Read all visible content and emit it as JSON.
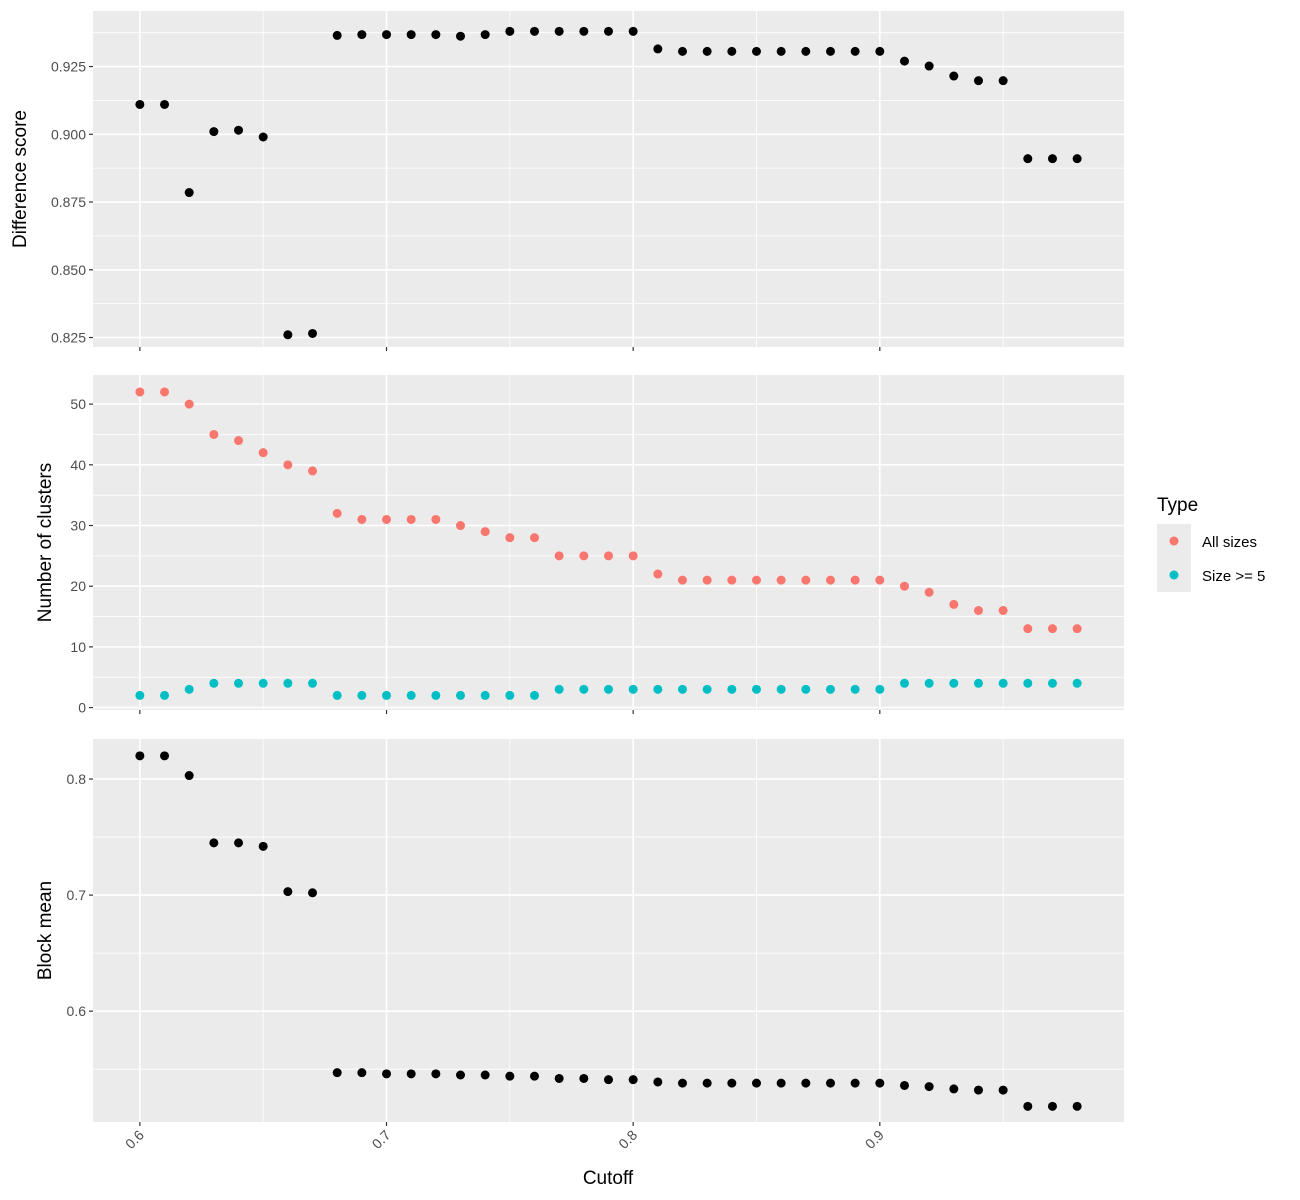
{
  "chart_data": {
    "type": "scatter",
    "xlabel": "Cutoff",
    "x": [
      0.6,
      0.61,
      0.62,
      0.63,
      0.64,
      0.65,
      0.66,
      0.67,
      0.68,
      0.69,
      0.7,
      0.71,
      0.72,
      0.73,
      0.74,
      0.75,
      0.76,
      0.77,
      0.78,
      0.79,
      0.8,
      0.81,
      0.82,
      0.83,
      0.84,
      0.85,
      0.86,
      0.87,
      0.88,
      0.89,
      0.9,
      0.91,
      0.92,
      0.93,
      0.94,
      0.95,
      0.96,
      0.97,
      0.98
    ],
    "xlim": [
      0.581,
      0.999
    ],
    "xticks": [
      0.6,
      0.7,
      0.8,
      0.9
    ],
    "xtick_labels": [
      "0.6",
      "0.7",
      "0.8",
      "0.9"
    ],
    "panels": [
      {
        "ylabel": "Difference score",
        "ylim": [
          0.8215,
          0.9455
        ],
        "yticks": [
          0.825,
          0.85,
          0.875,
          0.9,
          0.925
        ],
        "ytick_labels": [
          "0.825",
          "0.850",
          "0.875",
          "0.900",
          "0.925"
        ],
        "series": [
          {
            "color": "#000000",
            "values": [
              0.911,
              0.911,
              0.8785,
              0.901,
              0.9015,
              0.899,
              0.826,
              0.8265,
              0.9365,
              0.9368,
              0.9368,
              0.9368,
              0.9368,
              0.9362,
              0.9368,
              0.938,
              0.938,
              0.938,
              0.938,
              0.938,
              0.938,
              0.9315,
              0.9306,
              0.9306,
              0.9306,
              0.9306,
              0.9306,
              0.9306,
              0.9306,
              0.9306,
              0.9306,
              0.927,
              0.9252,
              0.9215,
              0.9198,
              0.9198,
              0.891,
              0.891,
              0.891
            ]
          }
        ]
      },
      {
        "ylabel": "Number of clusters",
        "ylim": [
          -0.4,
          54.8
        ],
        "yticks": [
          0,
          10,
          20,
          30,
          40,
          50
        ],
        "ytick_labels": [
          "0",
          "10",
          "20",
          "30",
          "40",
          "50"
        ],
        "series": [
          {
            "name": "All sizes",
            "color": "#F8766D",
            "values": [
              52,
              52,
              50,
              45,
              44,
              42,
              40,
              39,
              32,
              31,
              31,
              31,
              31,
              30,
              29,
              28,
              28,
              25,
              25,
              25,
              25,
              22,
              21,
              21,
              21,
              21,
              21,
              21,
              21,
              21,
              21,
              20,
              19,
              17,
              16,
              16,
              13,
              13,
              13
            ]
          },
          {
            "name": "Size >= 5",
            "color": "#00BFC4",
            "values": [
              2,
              2,
              3,
              4,
              4,
              4,
              4,
              4,
              2,
              2,
              2,
              2,
              2,
              2,
              2,
              2,
              2,
              3,
              3,
              3,
              3,
              3,
              3,
              3,
              3,
              3,
              3,
              3,
              3,
              3,
              3,
              4,
              4,
              4,
              4,
              4,
              4,
              4,
              4
            ]
          }
        ]
      },
      {
        "ylabel": "Block mean",
        "ylim": [
          0.5045,
          0.8345
        ],
        "yticks": [
          0.6,
          0.7,
          0.8
        ],
        "ytick_labels": [
          "0.6",
          "0.7",
          "0.8"
        ],
        "series": [
          {
            "color": "#000000",
            "values": [
              0.82,
              0.82,
              0.803,
              0.745,
              0.745,
              0.742,
              0.703,
              0.702,
              0.547,
              0.547,
              0.546,
              0.546,
              0.546,
              0.545,
              0.545,
              0.544,
              0.544,
              0.542,
              0.542,
              0.541,
              0.541,
              0.539,
              0.538,
              0.538,
              0.538,
              0.538,
              0.538,
              0.538,
              0.538,
              0.538,
              0.538,
              0.536,
              0.535,
              0.533,
              0.532,
              0.532,
              0.518,
              0.518,
              0.518
            ]
          }
        ]
      }
    ],
    "legend": {
      "title": "Type",
      "position": "right",
      "items": [
        {
          "label": "All sizes",
          "color": "#F8766D"
        },
        {
          "label": "Size >= 5",
          "color": "#00BFC4"
        }
      ]
    },
    "grid": true
  }
}
